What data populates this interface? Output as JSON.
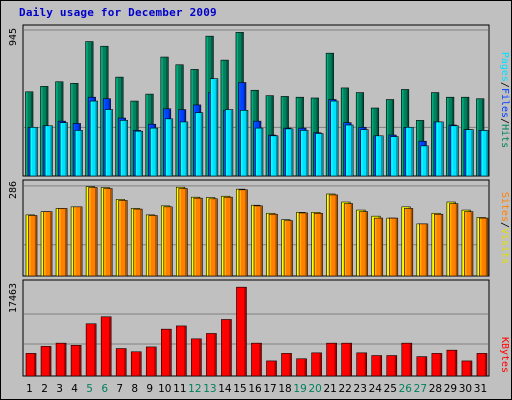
{
  "window": {
    "title": "Daily usage for December 2009"
  },
  "colors": {
    "background": "#c0c0c0",
    "hits": "#00805c",
    "files": "#0040ff",
    "pages": "#00e0ff",
    "visits": "#ffff00",
    "sites": "#ff8000",
    "kbytes": "#ff0000",
    "title": "#0000cc",
    "weekend_day": "#00805c"
  },
  "chart_data": [
    {
      "type": "bar",
      "ylabel_parts": [
        "Pages",
        "/",
        "Files",
        "/",
        "Hits"
      ],
      "ymax_label": "945",
      "ylim": [
        0,
        945
      ],
      "categories": [
        "1",
        "2",
        "3",
        "4",
        "5",
        "6",
        "7",
        "8",
        "9",
        "10",
        "11",
        "12",
        "13",
        "14",
        "15",
        "16",
        "17",
        "18",
        "19",
        "20",
        "21",
        "22",
        "23",
        "24",
        "25",
        "26",
        "27",
        "28",
        "29",
        "30",
        "31"
      ],
      "weekend_days": [
        "5",
        "6",
        "12",
        "13",
        "19",
        "20",
        "26",
        "27"
      ],
      "series": [
        {
          "name": "Hits",
          "values": [
            545,
            580,
            610,
            600,
            870,
            840,
            640,
            485,
            530,
            770,
            720,
            690,
            905,
            750,
            930,
            555,
            520,
            515,
            510,
            505,
            795,
            570,
            540,
            440,
            495,
            560,
            360,
            540,
            510,
            510,
            500
          ]
        },
        {
          "name": "Files",
          "values": [
            315,
            325,
            355,
            340,
            510,
            500,
            375,
            295,
            335,
            435,
            430,
            460,
            540,
            425,
            605,
            355,
            265,
            310,
            310,
            280,
            495,
            345,
            315,
            260,
            265,
            315,
            225,
            350,
            330,
            300,
            295
          ]
        },
        {
          "name": "Pages",
          "values": [
            315,
            325,
            345,
            295,
            485,
            430,
            360,
            290,
            310,
            370,
            350,
            410,
            630,
            430,
            425,
            310,
            260,
            305,
            295,
            275,
            485,
            330,
            300,
            260,
            255,
            315,
            195,
            350,
            325,
            300,
            295
          ]
        }
      ]
    },
    {
      "type": "bar",
      "ylabel_parts": [
        "Sites",
        "/",
        "Visits"
      ],
      "ymax_label": "286",
      "ylim": [
        0,
        286
      ],
      "series": [
        {
          "name": "Visits",
          "values": [
            190,
            200,
            210,
            215,
            278,
            275,
            238,
            210,
            190,
            218,
            276,
            245,
            244,
            248,
            270,
            220,
            195,
            175,
            198,
            198,
            255,
            230,
            205,
            186,
            180,
            215,
            162,
            195,
            230,
            205,
            182
          ]
        },
        {
          "name": "Sites",
          "values": [
            188,
            200,
            210,
            215,
            275,
            272,
            235,
            208,
            188,
            215,
            272,
            242,
            240,
            245,
            268,
            218,
            192,
            172,
            196,
            195,
            252,
            225,
            200,
            180,
            180,
            210,
            162,
            192,
            225,
            200,
            180
          ]
        }
      ]
    },
    {
      "type": "bar",
      "ylabel_parts": [
        "KBytes"
      ],
      "ymax_label": "17463",
      "ylim": [
        0,
        17463
      ],
      "series": [
        {
          "name": "KBytes",
          "values": [
            4200,
            5500,
            6100,
            5700,
            9700,
            11000,
            5100,
            4500,
            5400,
            8700,
            9300,
            6900,
            7900,
            10500,
            16500,
            6100,
            2800,
            4200,
            3200,
            4300,
            6100,
            6100,
            4300,
            3800,
            3800,
            6100,
            3600,
            4200,
            4800,
            2800,
            4200
          ]
        }
      ]
    }
  ]
}
